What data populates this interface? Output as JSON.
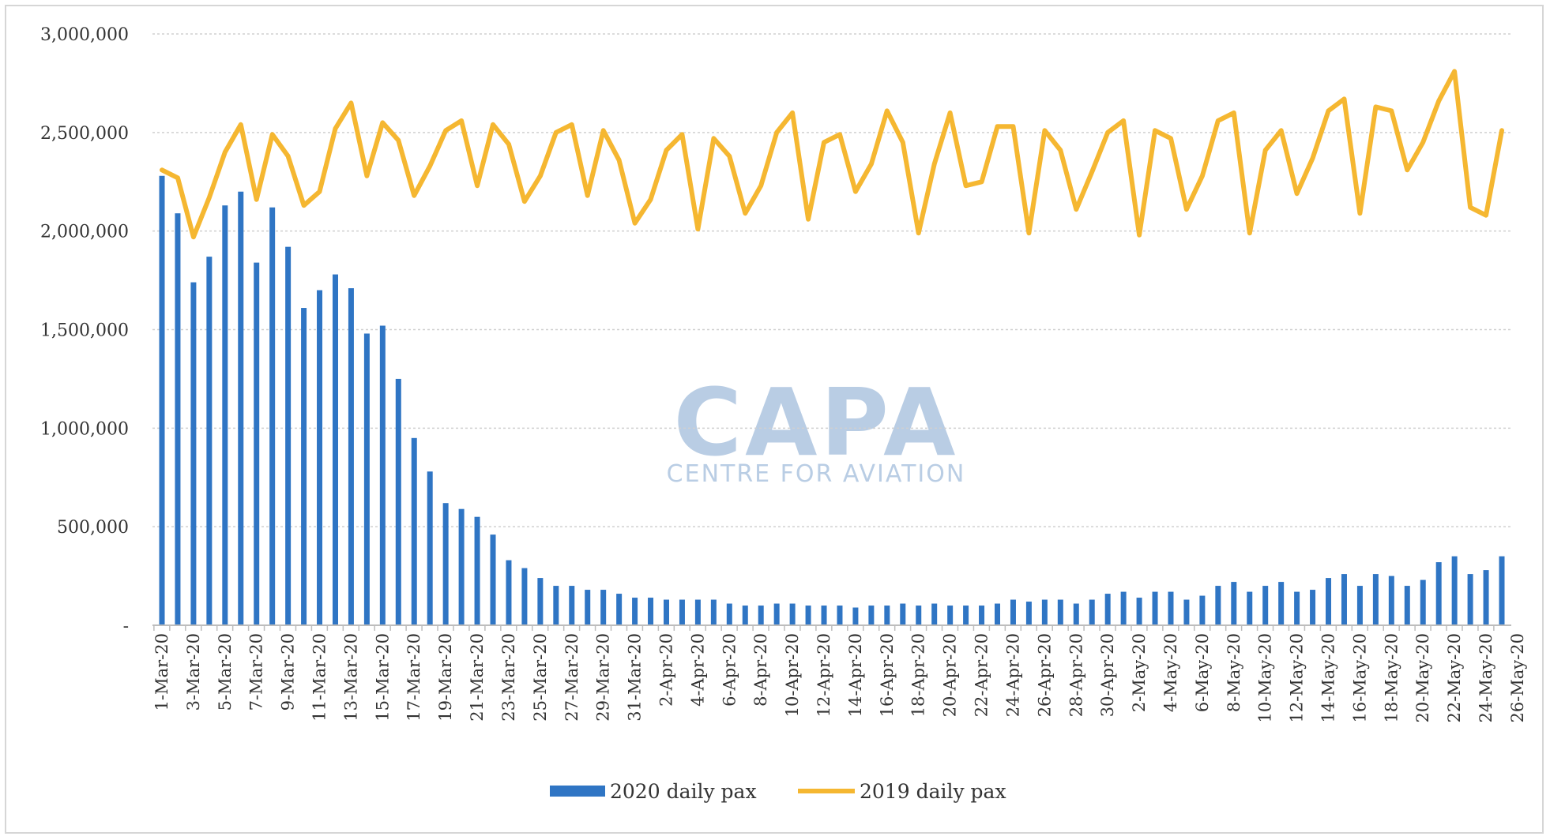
{
  "watermark": {
    "brand": "CAPA",
    "tagline": "CENTRE FOR AVIATION"
  },
  "colors": {
    "bars_2020": "#2f75c4",
    "line_2019": "#f5b731",
    "grid": "#d0d0d0"
  },
  "chart_data": {
    "type": "bar",
    "title": "",
    "xlabel": "",
    "ylabel": "",
    "ylim": [
      0,
      3000000
    ],
    "y_ticks": [
      {
        "value": 0,
        "label": "-"
      },
      {
        "value": 500000,
        "label": "500,000"
      },
      {
        "value": 1000000,
        "label": "1,000,000"
      },
      {
        "value": 1500000,
        "label": "1,500,000"
      },
      {
        "value": 2000000,
        "label": "2,000,000"
      },
      {
        "value": 2500000,
        "label": "2,500,000"
      },
      {
        "value": 3000000,
        "label": "3,000,000"
      }
    ],
    "x_tick_labels": [
      "1-Mar-20",
      "3-Mar-20",
      "5-Mar-20",
      "7-Mar-20",
      "9-Mar-20",
      "11-Mar-20",
      "13-Mar-20",
      "15-Mar-20",
      "17-Mar-20",
      "19-Mar-20",
      "21-Mar-20",
      "23-Mar-20",
      "25-Mar-20",
      "27-Mar-20",
      "29-Mar-20",
      "31-Mar-20",
      "2-Apr-20",
      "4-Apr-20",
      "6-Apr-20",
      "8-Apr-20",
      "10-Apr-20",
      "12-Apr-20",
      "14-Apr-20",
      "16-Apr-20",
      "18-Apr-20",
      "20-Apr-20",
      "22-Apr-20",
      "24-Apr-20",
      "26-Apr-20",
      "28-Apr-20",
      "30-Apr-20",
      "2-May-20",
      "4-May-20",
      "6-May-20",
      "8-May-20",
      "10-May-20",
      "12-May-20",
      "14-May-20",
      "16-May-20",
      "18-May-20",
      "20-May-20",
      "22-May-20",
      "24-May-20",
      "26-May-20"
    ],
    "grid": true,
    "legend_position": "bottom-center",
    "series": [
      {
        "name": "2020 daily pax",
        "type": "bar",
        "values": [
          2280000,
          2090000,
          1740000,
          1870000,
          2130000,
          2200000,
          1840000,
          2120000,
          1920000,
          1610000,
          1700000,
          1780000,
          1710000,
          1480000,
          1520000,
          1250000,
          950000,
          780000,
          620000,
          590000,
          550000,
          460000,
          330000,
          290000,
          240000,
          200000,
          200000,
          180000,
          180000,
          160000,
          140000,
          140000,
          130000,
          130000,
          130000,
          130000,
          110000,
          100000,
          100000,
          110000,
          110000,
          100000,
          100000,
          100000,
          90000,
          100000,
          100000,
          110000,
          100000,
          110000,
          100000,
          100000,
          100000,
          110000,
          130000,
          120000,
          130000,
          130000,
          110000,
          130000,
          160000,
          170000,
          140000,
          170000,
          170000,
          130000,
          150000,
          200000,
          220000,
          170000,
          200000,
          220000,
          170000,
          180000,
          240000,
          260000,
          200000,
          260000,
          250000,
          200000,
          230000,
          320000,
          350000,
          260000,
          280000,
          350000
        ]
      },
      {
        "name": "2019 daily pax",
        "type": "line",
        "values": [
          2310000,
          2270000,
          1970000,
          2170000,
          2400000,
          2540000,
          2160000,
          2490000,
          2380000,
          2130000,
          2200000,
          2520000,
          2650000,
          2280000,
          2550000,
          2460000,
          2180000,
          2330000,
          2510000,
          2560000,
          2230000,
          2540000,
          2440000,
          2150000,
          2280000,
          2500000,
          2540000,
          2180000,
          2510000,
          2360000,
          2040000,
          2160000,
          2410000,
          2490000,
          2010000,
          2470000,
          2380000,
          2090000,
          2230000,
          2500000,
          2600000,
          2060000,
          2450000,
          2490000,
          2200000,
          2340000,
          2610000,
          2450000,
          1990000,
          2340000,
          2600000,
          2230000,
          2250000,
          2530000,
          2530000,
          1990000,
          2510000,
          2410000,
          2110000,
          2300000,
          2500000,
          2560000,
          1980000,
          2510000,
          2470000,
          2110000,
          2280000,
          2560000,
          2600000,
          1990000,
          2410000,
          2510000,
          2190000,
          2370000,
          2610000,
          2670000,
          2090000,
          2630000,
          2610000,
          2310000,
          2450000,
          2660000,
          2810000,
          2120000,
          2080000,
          2510000
        ]
      }
    ]
  }
}
